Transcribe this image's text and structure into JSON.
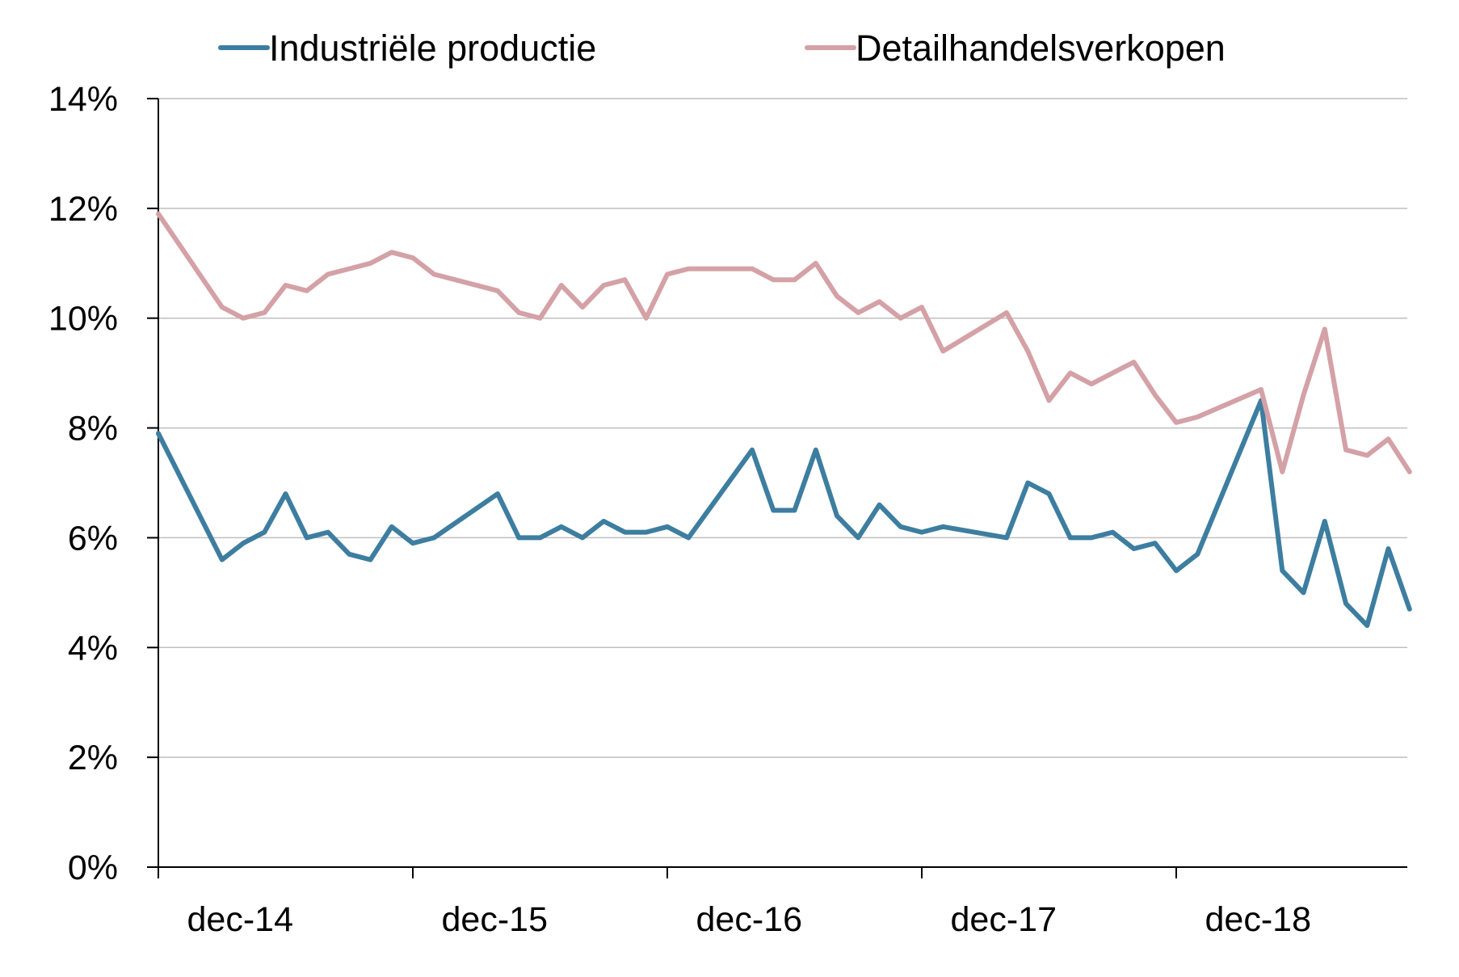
{
  "chart_data": {
    "type": "line",
    "title": "",
    "xlabel": "",
    "ylabel": "",
    "ylim": [
      0,
      14
    ],
    "yticks": [
      0,
      2,
      4,
      6,
      8,
      10,
      12,
      14
    ],
    "ytick_labels": [
      "0%",
      "2%",
      "4%",
      "6%",
      "8%",
      "10%",
      "12%",
      "14%"
    ],
    "x_start": "dec-14",
    "x_end": "sep-19",
    "xtick_labels": [
      "dec-14",
      "dec-15",
      "dec-16",
      "dec-17",
      "dec-18"
    ],
    "grid": true,
    "legend_position": "top",
    "series": [
      {
        "name": "Industriële productie",
        "color": "#3d7ea0",
        "x": [
          "dec-14",
          "mar-15",
          "apr-15",
          "may-15",
          "jun-15",
          "jul-15",
          "aug-15",
          "sep-15",
          "oct-15",
          "nov-15",
          "dec-15",
          "jan-16",
          "apr-16",
          "may-16",
          "jun-16",
          "jul-16",
          "aug-16",
          "sep-16",
          "oct-16",
          "nov-16",
          "dec-16",
          "jan-17",
          "apr-17",
          "may-17",
          "jun-17",
          "jul-17",
          "aug-17",
          "sep-17",
          "oct-17",
          "nov-17",
          "dec-17",
          "jan-18",
          "apr-18",
          "may-18",
          "jun-18",
          "jul-18",
          "aug-18",
          "sep-18",
          "oct-18",
          "nov-18",
          "dec-18",
          "jan-19",
          "apr-19",
          "may-19",
          "jun-19",
          "jul-19",
          "aug-19",
          "sep-19",
          "oct-19",
          "nov-19"
        ],
        "values": [
          7.9,
          5.6,
          5.9,
          6.1,
          6.8,
          6.0,
          6.1,
          5.7,
          5.6,
          6.2,
          5.9,
          6.0,
          6.8,
          6.0,
          6.0,
          6.2,
          6.0,
          6.3,
          6.1,
          6.1,
          6.2,
          6.0,
          7.6,
          6.5,
          6.5,
          7.6,
          6.4,
          6.0,
          6.6,
          6.2,
          6.1,
          6.2,
          6.0,
          7.0,
          6.8,
          6.0,
          6.0,
          6.1,
          5.8,
          5.9,
          5.4,
          5.7,
          8.5,
          5.4,
          5.0,
          6.3,
          4.8,
          4.4,
          5.8,
          4.7
        ]
      },
      {
        "name": "Detailhandelsverkopen",
        "color": "#d4a1a6",
        "x": [
          "dec-14",
          "mar-15",
          "apr-15",
          "may-15",
          "jun-15",
          "jul-15",
          "aug-15",
          "sep-15",
          "oct-15",
          "nov-15",
          "dec-15",
          "jan-16",
          "apr-16",
          "may-16",
          "jun-16",
          "jul-16",
          "aug-16",
          "sep-16",
          "oct-16",
          "nov-16",
          "dec-16",
          "jan-17",
          "apr-17",
          "may-17",
          "jun-17",
          "jul-17",
          "aug-17",
          "sep-17",
          "oct-17",
          "nov-17",
          "dec-17",
          "jan-18",
          "apr-18",
          "may-18",
          "jun-18",
          "jul-18",
          "aug-18",
          "sep-18",
          "oct-18",
          "nov-18",
          "dec-18",
          "jan-19",
          "apr-19",
          "may-19",
          "jun-19",
          "jul-19",
          "aug-19",
          "sep-19",
          "oct-19",
          "nov-19"
        ],
        "values": [
          11.9,
          10.2,
          10.0,
          10.1,
          10.6,
          10.5,
          10.8,
          10.9,
          11.0,
          11.2,
          11.1,
          10.8,
          10.5,
          10.1,
          10.0,
          10.6,
          10.2,
          10.6,
          10.7,
          10.0,
          10.8,
          10.9,
          10.9,
          10.7,
          10.7,
          11.0,
          10.4,
          10.1,
          10.3,
          10.0,
          10.2,
          9.4,
          10.1,
          9.4,
          8.5,
          9.0,
          8.8,
          9.0,
          9.2,
          8.6,
          8.1,
          8.2,
          8.7,
          7.2,
          8.6,
          9.8,
          7.6,
          7.5,
          7.8,
          7.2
        ]
      }
    ]
  }
}
